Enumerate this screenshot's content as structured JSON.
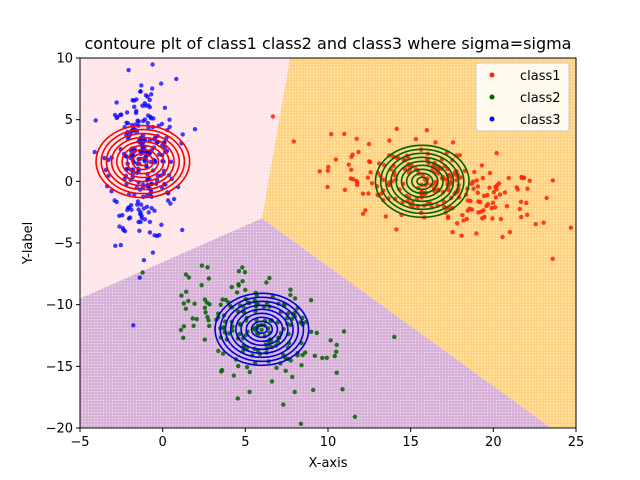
{
  "chart_data": {
    "type": "scatter",
    "title": "contoure plt of class1 class2 and class3 where sigma=sigma",
    "xlabel": "X-axis",
    "ylabel": "Y-label",
    "xlim": [
      -5,
      25
    ],
    "ylim": [
      -20,
      10
    ],
    "xticks": [
      -5,
      0,
      5,
      10,
      15,
      20,
      25
    ],
    "yticks": [
      -20,
      -15,
      -10,
      -5,
      0,
      5,
      10
    ],
    "grid": false,
    "legend_position": "top-right",
    "decision_regions": [
      {
        "class": "class1",
        "color": "#ffd27f",
        "polygon": [
          [
            7.7,
            10
          ],
          [
            25,
            10
          ],
          [
            25,
            -20
          ],
          [
            23.5,
            -20
          ],
          [
            6,
            -3.0
          ]
        ]
      },
      {
        "class": "class3",
        "color": "#ffe4e8",
        "polygon": [
          [
            -5,
            10
          ],
          [
            7.7,
            10
          ],
          [
            6,
            -3.0
          ],
          [
            -5,
            -9.5
          ]
        ]
      },
      {
        "class": "class2",
        "color": "#d7b0d7",
        "polygon": [
          [
            -5,
            -9.5
          ],
          [
            6,
            -3.0
          ],
          [
            23.5,
            -20
          ],
          [
            -5,
            -20
          ]
        ]
      }
    ],
    "series": [
      {
        "name": "class1",
        "color": "#ff2200",
        "mean": [
          16.5,
          -0.3
        ],
        "spread": [
          3.2,
          1.6
        ],
        "tilt": -0.35,
        "count": 250,
        "contour_color": "#ff0000",
        "contour_center": [
          -1.2,
          1.6
        ]
      },
      {
        "name": "class2",
        "color": "#006400",
        "mean": [
          6.0,
          -12.0
        ],
        "spread": [
          2.0,
          2.6
        ],
        "tilt": 0.9,
        "count": 200,
        "contour_color": "#006400",
        "contour_center": [
          15.7,
          0.0
        ]
      },
      {
        "name": "class3",
        "color": "#0000ff",
        "mean": [
          -1.2,
          1.6
        ],
        "spread": [
          1.0,
          3.3
        ],
        "tilt": 0.0,
        "count": 250,
        "contour_color": "#0000dd",
        "contour_center": [
          6.0,
          -12.0
        ]
      }
    ]
  }
}
